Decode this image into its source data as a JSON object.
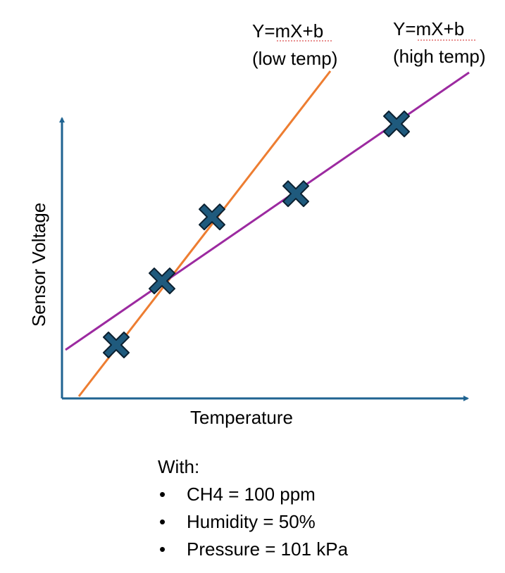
{
  "chart_data": {
    "type": "scatter",
    "xlabel": "Temperature",
    "ylabel": "Sensor Voltage",
    "colors": {
      "axis": "#1f6391",
      "low_temp_line": "#ed7d31",
      "high_temp_line": "#9c2aa0",
      "marker_fill": "#1f5a7d",
      "marker_stroke": "#0b2030"
    },
    "points": [
      {
        "x": 1,
        "y": 1.0
      },
      {
        "x": 2,
        "y": 2.1
      },
      {
        "x": 3,
        "y": 3.2
      },
      {
        "x": 4,
        "y": 3.6
      },
      {
        "x": 5,
        "y": 4.8
      }
    ],
    "series": [
      {
        "name": "low temp",
        "equation": "Y=mX+b",
        "label": "(low temp)"
      },
      {
        "name": "high temp",
        "equation": "Y=mX+b",
        "label": "(high temp)"
      }
    ],
    "icons": {
      "marker": "x-marker-icon"
    }
  },
  "notes": {
    "heading": "With:",
    "items": [
      "CH4 = 100 ppm",
      "Humidity = 50%",
      "Pressure = 101 kPa"
    ]
  }
}
